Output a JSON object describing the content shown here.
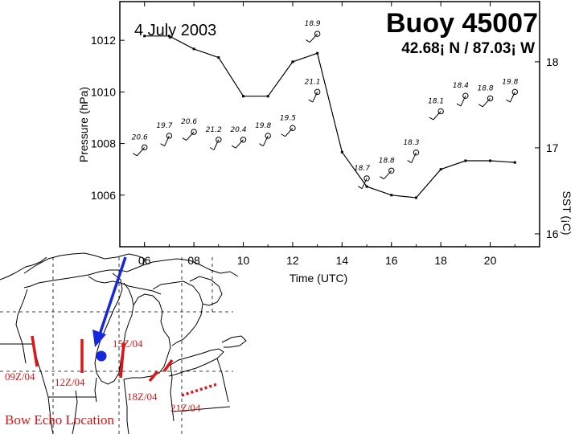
{
  "chart_data": {
    "type": "line",
    "date_label": "4 July 2003",
    "title": "Buoy 45007",
    "subtitle": "42.68¡ N / 87.03¡ W",
    "xlabel": "Time (UTC)",
    "ylabel": "Pressure (hPa)",
    "y2label": "SST (¡C)",
    "xlim": [
      5,
      22
    ],
    "ylim": [
      1004.0,
      1013.5
    ],
    "xticks": [
      "06",
      "08",
      "10",
      "12",
      "14",
      "16",
      "18",
      "20"
    ],
    "yticks": [
      "1006",
      "1008",
      "1010",
      "1012"
    ],
    "y2ticks": [
      "18",
      "17",
      "16"
    ],
    "y2lim": [
      15.85,
      18.7
    ],
    "series": [
      {
        "x": [
          6,
          7,
          8,
          9,
          10,
          11,
          12,
          13,
          14,
          15,
          16,
          17,
          18,
          19,
          20,
          21
        ],
        "values": [
          18.3,
          18.3,
          18.15,
          18.05,
          17.6,
          17.6,
          18.0,
          18.1,
          16.95,
          16.55,
          16.45,
          16.42,
          16.75,
          16.85,
          16.85,
          16.83
        ]
      }
    ],
    "wind_obs": [
      {
        "x": 6,
        "pressure": 1007.85,
        "label": "20.6"
      },
      {
        "x": 7,
        "pressure": 1008.3,
        "label": "19.7"
      },
      {
        "x": 8,
        "pressure": 1008.45,
        "label": "20.6"
      },
      {
        "x": 9,
        "pressure": 1008.15,
        "label": "21.2"
      },
      {
        "x": 10,
        "pressure": 1008.15,
        "label": "20.4"
      },
      {
        "x": 11,
        "pressure": 1008.3,
        "label": "19.8"
      },
      {
        "x": 12,
        "pressure": 1008.6,
        "label": "19.5"
      },
      {
        "x": 13,
        "pressure": 1010.0,
        "label": "21.1"
      },
      {
        "x": 13,
        "pressure": 1012.25,
        "label": "18.9"
      },
      {
        "x": 15,
        "pressure": 1006.65,
        "label": "18.7"
      },
      {
        "x": 16,
        "pressure": 1006.95,
        "label": "18.8"
      },
      {
        "x": 17,
        "pressure": 1007.65,
        "label": "18.3"
      },
      {
        "x": 18,
        "pressure": 1009.25,
        "label": "18.1"
      },
      {
        "x": 19,
        "pressure": 1009.85,
        "label": "18.4"
      },
      {
        "x": 20,
        "pressure": 1009.75,
        "label": "18.8"
      },
      {
        "x": 21,
        "pressure": 1010.0,
        "label": "19.8"
      }
    ]
  },
  "map": {
    "caption": "Bow Echo Location",
    "times": [
      "09Z/04",
      "12Z/04",
      "15Z/04",
      "18Z/04",
      "21Z/04"
    ],
    "colors": {
      "bow_echo": "#e01414",
      "arrow": "#1428e0",
      "buoy_dot": "#1428e0"
    }
  }
}
